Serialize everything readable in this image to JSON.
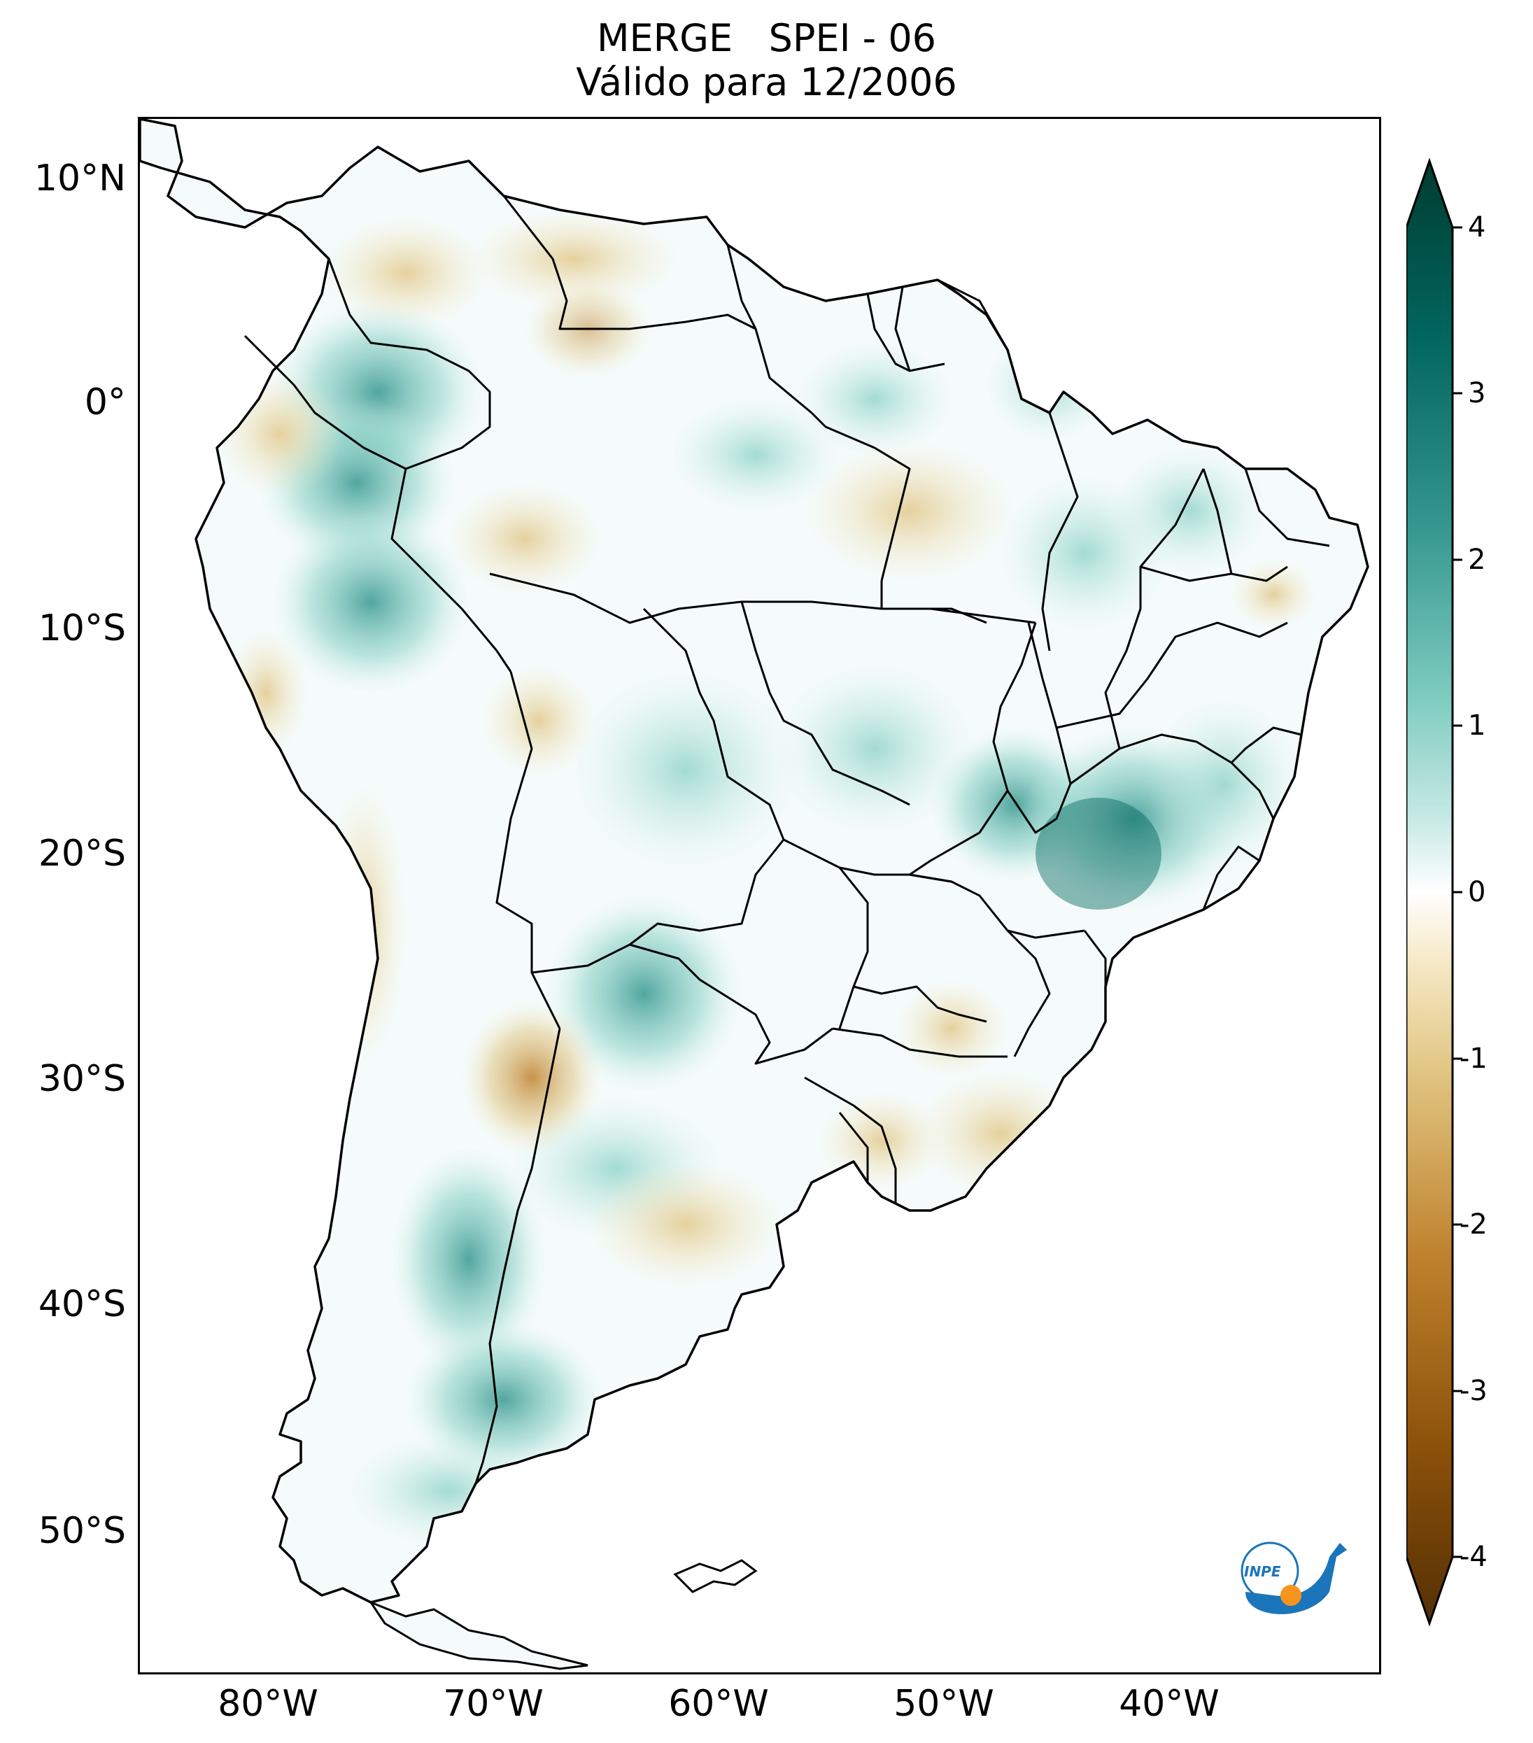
{
  "title": {
    "line1": "MERGE   SPEI - 06",
    "line2": "Válido para 12/2006"
  },
  "map": {
    "region": "South America",
    "variable": "SPEI - 06",
    "lat_labels": [
      "10°N",
      "0°",
      "10°S",
      "20°S",
      "30°S",
      "40°S",
      "50°S"
    ],
    "lon_labels": [
      "80°W",
      "70°W",
      "60°W",
      "50°W",
      "40°W"
    ]
  },
  "colorbar": {
    "ticks": [
      "4",
      "3",
      "2",
      "1",
      "0",
      "-1",
      "-2",
      "-3",
      "-4"
    ],
    "colormap": "BrBG",
    "colors": [
      "#543005",
      "#8c510a",
      "#bf812d",
      "#dfc27d",
      "#f6e8c3",
      "#ffffff",
      "#c7eae5",
      "#80cdc1",
      "#35978f",
      "#01665e",
      "#003c30"
    ]
  },
  "logo": {
    "text": "INPE",
    "colors": [
      "#1b75bb",
      "#f7941d"
    ]
  }
}
